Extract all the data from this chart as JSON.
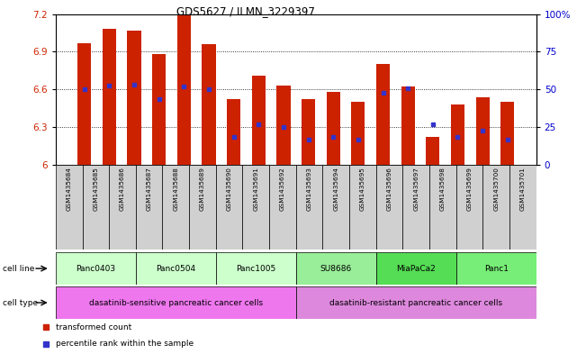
{
  "title": "GDS5627 / ILMN_3229397",
  "samples": [
    "GSM1435684",
    "GSM1435685",
    "GSM1435686",
    "GSM1435687",
    "GSM1435688",
    "GSM1435689",
    "GSM1435690",
    "GSM1435691",
    "GSM1435692",
    "GSM1435693",
    "GSM1435694",
    "GSM1435695",
    "GSM1435696",
    "GSM1435697",
    "GSM1435698",
    "GSM1435699",
    "GSM1435700",
    "GSM1435701"
  ],
  "bar_values": [
    6.97,
    7.08,
    7.07,
    6.88,
    7.19,
    6.96,
    6.52,
    6.71,
    6.63,
    6.52,
    6.58,
    6.5,
    6.8,
    6.62,
    6.22,
    6.48,
    6.54,
    6.5
  ],
  "percentile_values": [
    6.6,
    6.63,
    6.64,
    6.52,
    6.62,
    6.6,
    6.22,
    6.32,
    6.3,
    6.2,
    6.22,
    6.2,
    6.57,
    6.61,
    6.32,
    6.22,
    6.27,
    6.2
  ],
  "ylim": [
    6.0,
    7.2
  ],
  "yticks": [
    6.0,
    6.3,
    6.6,
    6.9,
    7.2
  ],
  "right_yticks": [
    0,
    25,
    50,
    75,
    100
  ],
  "right_ytick_labels": [
    "0",
    "25",
    "50",
    "75",
    "100%"
  ],
  "bar_color": "#cc2200",
  "percentile_color": "#3333cc",
  "cell_lines": [
    {
      "label": "Panc0403",
      "start": 0,
      "end": 2,
      "color": "#ccffcc"
    },
    {
      "label": "Panc0504",
      "start": 3,
      "end": 5,
      "color": "#ccffcc"
    },
    {
      "label": "Panc1005",
      "start": 6,
      "end": 8,
      "color": "#ccffcc"
    },
    {
      "label": "SU8686",
      "start": 9,
      "end": 11,
      "color": "#99ee99"
    },
    {
      "label": "MiaPaCa2",
      "start": 12,
      "end": 14,
      "color": "#55dd55"
    },
    {
      "label": "Panc1",
      "start": 15,
      "end": 17,
      "color": "#77ee77"
    }
  ],
  "cell_types": [
    {
      "label": "dasatinib-sensitive pancreatic cancer cells",
      "start": 0,
      "end": 8,
      "color": "#ee77ee"
    },
    {
      "label": "dasatinib-resistant pancreatic cancer cells",
      "start": 9,
      "end": 17,
      "color": "#dd88dd"
    }
  ],
  "legend_items": [
    {
      "label": "transformed count",
      "color": "#cc2200",
      "marker": "s"
    },
    {
      "label": "percentile rank within the sample",
      "color": "#3333cc",
      "marker": "s"
    }
  ],
  "cell_line_label": "cell line",
  "cell_type_label": "cell type",
  "bar_width": 0.55
}
